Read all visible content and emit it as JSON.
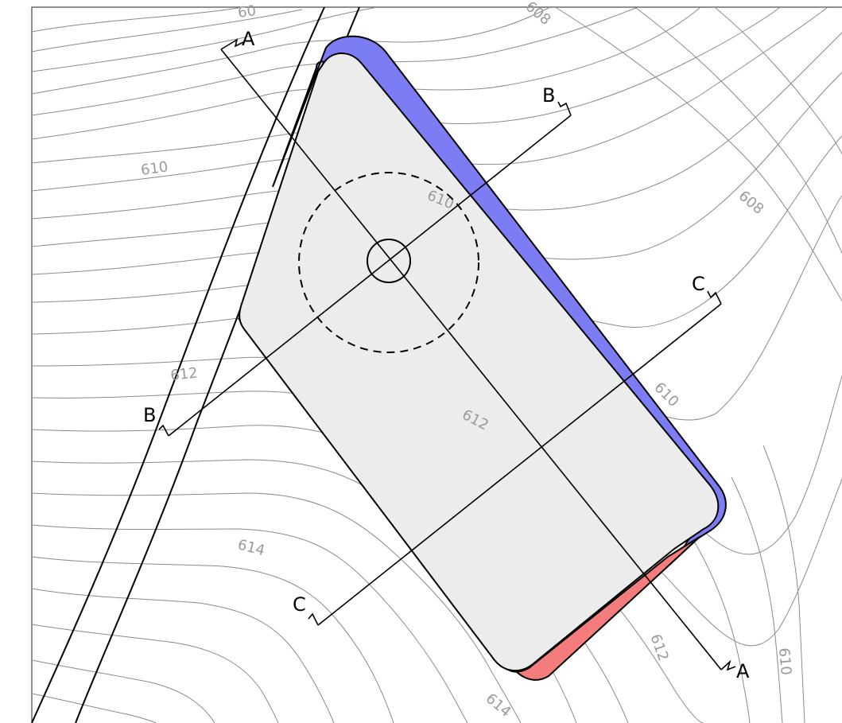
{
  "drawing": {
    "contour_labels": {
      "c610_left": "610",
      "c612_left": "612",
      "c614_left": "614",
      "c610_pad": "610",
      "c612_pad": "612",
      "c608_right": "608",
      "c610_right_mid": "610",
      "c612_bottom": "612",
      "c614_bottom": "614",
      "c610_bottom_right": "610",
      "c608_top": "608",
      "c60x_top": "60"
    },
    "sections": {
      "a_top": "A",
      "a_bottom": "A",
      "b_top": "B",
      "b_bottom": "B",
      "c_top": "C",
      "c_bottom": "C"
    },
    "colors": {
      "pad_fill": "#ececec",
      "cut": "#7c7cf4",
      "fill": "#f47c7c",
      "contour": "#8a8a8a"
    }
  }
}
